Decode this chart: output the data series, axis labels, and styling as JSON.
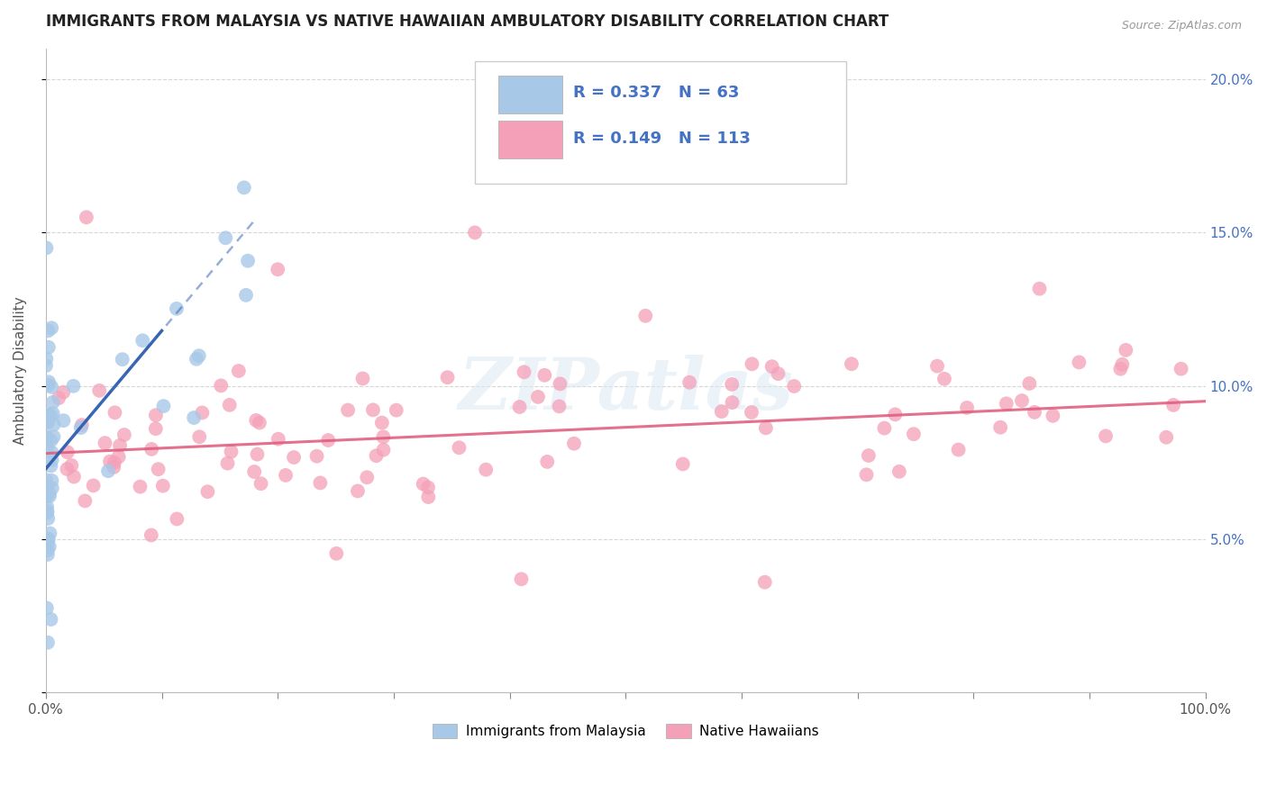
{
  "title": "IMMIGRANTS FROM MALAYSIA VS NATIVE HAWAIIAN AMBULATORY DISABILITY CORRELATION CHART",
  "source": "Source: ZipAtlas.com",
  "ylabel": "Ambulatory Disability",
  "watermark": "ZIPatlas",
  "legend_blue_R": 0.337,
  "legend_blue_N": 63,
  "legend_pink_R": 0.149,
  "legend_pink_N": 113,
  "legend_blue_label": "Immigrants from Malaysia",
  "legend_pink_label": "Native Hawaiians",
  "blue_color": "#a8c8e8",
  "pink_color": "#f4a0b8",
  "blue_line_color": "#3060b0",
  "pink_line_color": "#e06080",
  "xlim": [
    0,
    100
  ],
  "ylim": [
    0,
    21
  ],
  "grid_color": "#cccccc",
  "background_color": "#ffffff",
  "title_color": "#222222",
  "axis_color": "#555555",
  "blue_text_color": "#4472c4",
  "right_tick_color": "#4472c4"
}
